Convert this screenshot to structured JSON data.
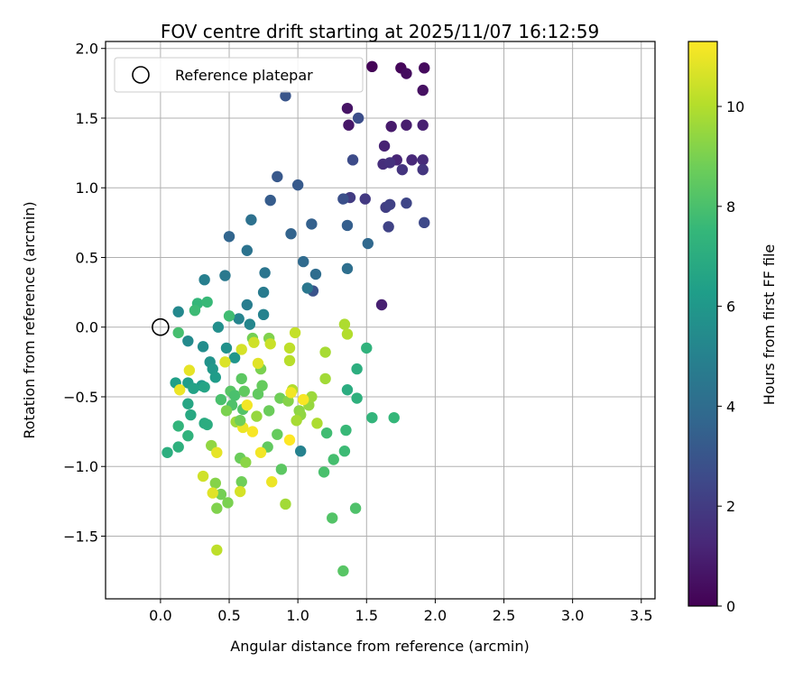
{
  "chart_data": {
    "type": "scatter",
    "title": "FOV centre drift starting at 2025/11/07 16:12:59",
    "xlabel": "Angular distance from reference (arcmin)",
    "ylabel": "Rotation from reference (arcmin)",
    "xlim": [
      -0.4,
      3.6
    ],
    "ylim": [
      -1.95,
      2.05
    ],
    "xticks": [
      "0.0",
      "0.5",
      "1.0",
      "1.5",
      "2.0",
      "2.5",
      "3.0",
      "3.5"
    ],
    "xtick_values": [
      0.0,
      0.5,
      1.0,
      1.5,
      2.0,
      2.5,
      3.0,
      3.5
    ],
    "yticks": [
      "−1.5",
      "−1.0",
      "−0.5",
      "0.0",
      "0.5",
      "1.0",
      "1.5",
      "2.0"
    ],
    "ytick_values": [
      -1.5,
      -1.0,
      -0.5,
      0.0,
      0.5,
      1.0,
      1.5,
      2.0
    ],
    "grid": true,
    "legend": {
      "label": "Reference platepar",
      "placement": "top-left"
    },
    "reference_point": {
      "x": 0.0,
      "y": 0.0
    },
    "colorbar": {
      "label": "Hours from first FF file",
      "colormap": "viridis",
      "range": [
        0,
        11.3
      ],
      "ticks": [
        "0",
        "2",
        "4",
        "6",
        "8",
        "10"
      ],
      "tick_values": [
        0,
        2,
        4,
        6,
        8,
        10
      ]
    },
    "colors": {
      "viridis": [
        "#440154",
        "#482878",
        "#3e4989",
        "#31688e",
        "#26828e",
        "#1f9e89",
        "#35b779",
        "#6ece58",
        "#b5de2b",
        "#fde725"
      ],
      "grid": "#b0b0b0",
      "reference_marker": "#000000"
    },
    "points": [
      {
        "x": 1.54,
        "y": 1.87,
        "h": 0.1
      },
      {
        "x": 1.75,
        "y": 1.86,
        "h": 0.2
      },
      {
        "x": 1.92,
        "y": 1.86,
        "h": 0.3
      },
      {
        "x": 1.79,
        "y": 1.82,
        "h": 0.4
      },
      {
        "x": 1.91,
        "y": 1.7,
        "h": 0.5
      },
      {
        "x": 1.36,
        "y": 1.57,
        "h": 0.6
      },
      {
        "x": 1.37,
        "y": 1.45,
        "h": 0.7
      },
      {
        "x": 1.68,
        "y": 1.44,
        "h": 0.8
      },
      {
        "x": 1.79,
        "y": 1.45,
        "h": 0.9
      },
      {
        "x": 1.91,
        "y": 1.45,
        "h": 1.0
      },
      {
        "x": 1.63,
        "y": 1.3,
        "h": 1.1
      },
      {
        "x": 1.72,
        "y": 1.2,
        "h": 1.2
      },
      {
        "x": 1.83,
        "y": 1.2,
        "h": 1.3
      },
      {
        "x": 1.91,
        "y": 1.2,
        "h": 1.4
      },
      {
        "x": 1.62,
        "y": 1.17,
        "h": 1.5
      },
      {
        "x": 1.67,
        "y": 1.18,
        "h": 1.6
      },
      {
        "x": 1.76,
        "y": 1.13,
        "h": 1.7
      },
      {
        "x": 1.91,
        "y": 1.13,
        "h": 1.8
      },
      {
        "x": 1.49,
        "y": 0.92,
        "h": 1.9
      },
      {
        "x": 1.38,
        "y": 0.93,
        "h": 2.0
      },
      {
        "x": 1.64,
        "y": 0.86,
        "h": 2.1
      },
      {
        "x": 1.67,
        "y": 0.88,
        "h": 2.2
      },
      {
        "x": 1.66,
        "y": 0.72,
        "h": 2.3
      },
      {
        "x": 1.79,
        "y": 0.89,
        "h": 2.4
      },
      {
        "x": 1.92,
        "y": 0.75,
        "h": 2.5
      },
      {
        "x": 1.4,
        "y": 1.2,
        "h": 2.6
      },
      {
        "x": 1.44,
        "y": 1.5,
        "h": 2.7
      },
      {
        "x": 1.33,
        "y": 0.92,
        "h": 2.8
      },
      {
        "x": 1.11,
        "y": 0.26,
        "h": 2.9
      },
      {
        "x": 0.91,
        "y": 1.66,
        "h": 3.0
      },
      {
        "x": 0.85,
        "y": 1.08,
        "h": 3.1
      },
      {
        "x": 1.0,
        "y": 1.02,
        "h": 3.2
      },
      {
        "x": 0.8,
        "y": 0.91,
        "h": 3.3
      },
      {
        "x": 1.36,
        "y": 0.73,
        "h": 3.4
      },
      {
        "x": 1.1,
        "y": 0.74,
        "h": 3.5
      },
      {
        "x": 0.95,
        "y": 0.67,
        "h": 3.6
      },
      {
        "x": 0.5,
        "y": 0.65,
        "h": 3.7
      },
      {
        "x": 1.51,
        "y": 0.6,
        "h": 3.8
      },
      {
        "x": 1.04,
        "y": 0.47,
        "h": 3.9
      },
      {
        "x": 1.13,
        "y": 0.38,
        "h": 4.0
      },
      {
        "x": 1.36,
        "y": 0.42,
        "h": 4.1
      },
      {
        "x": 0.66,
        "y": 0.77,
        "h": 4.2
      },
      {
        "x": 0.63,
        "y": 0.55,
        "h": 4.3
      },
      {
        "x": 0.76,
        "y": 0.39,
        "h": 4.4
      },
      {
        "x": 1.07,
        "y": 0.28,
        "h": 4.5
      },
      {
        "x": 0.47,
        "y": 0.37,
        "h": 4.6
      },
      {
        "x": 0.75,
        "y": 0.25,
        "h": 4.7
      },
      {
        "x": 0.63,
        "y": 0.16,
        "h": 4.8
      },
      {
        "x": 0.32,
        "y": 0.34,
        "h": 4.9
      },
      {
        "x": 0.75,
        "y": 0.09,
        "h": 5.0
      },
      {
        "x": 0.57,
        "y": 0.06,
        "h": 5.1
      },
      {
        "x": 0.65,
        "y": 0.02,
        "h": 5.2
      },
      {
        "x": 0.13,
        "y": 0.11,
        "h": 5.3
      },
      {
        "x": 0.2,
        "y": -0.1,
        "h": 5.4
      },
      {
        "x": 0.31,
        "y": -0.14,
        "h": 5.5
      },
      {
        "x": 0.42,
        "y": 0.0,
        "h": 5.6
      },
      {
        "x": 0.48,
        "y": -0.15,
        "h": 5.7
      },
      {
        "x": 0.36,
        "y": -0.25,
        "h": 5.8
      },
      {
        "x": 0.54,
        "y": -0.22,
        "h": 5.9
      },
      {
        "x": 0.38,
        "y": -0.3,
        "h": 6.0
      },
      {
        "x": 0.3,
        "y": -0.42,
        "h": 6.1
      },
      {
        "x": 0.4,
        "y": -0.36,
        "h": 6.2
      },
      {
        "x": 0.2,
        "y": -0.4,
        "h": 6.3
      },
      {
        "x": 0.11,
        "y": -0.4,
        "h": 6.4
      },
      {
        "x": 0.24,
        "y": -0.44,
        "h": 6.5
      },
      {
        "x": 0.32,
        "y": -0.43,
        "h": 6.6
      },
      {
        "x": 0.2,
        "y": -0.55,
        "h": 6.7
      },
      {
        "x": 0.22,
        "y": -0.63,
        "h": 6.8
      },
      {
        "x": 0.32,
        "y": -0.69,
        "h": 6.9
      },
      {
        "x": 0.34,
        "y": -0.7,
        "h": 7.0
      },
      {
        "x": 0.05,
        "y": -0.9,
        "h": 7.1
      },
      {
        "x": 0.13,
        "y": -0.86,
        "h": 7.2
      },
      {
        "x": 0.2,
        "y": -0.78,
        "h": 7.3
      },
      {
        "x": 0.13,
        "y": -0.71,
        "h": 7.4
      },
      {
        "x": 0.27,
        "y": 0.17,
        "h": 7.5
      },
      {
        "x": 0.34,
        "y": 0.18,
        "h": 7.6
      },
      {
        "x": 0.25,
        "y": 0.12,
        "h": 7.7
      },
      {
        "x": 0.5,
        "y": 0.08,
        "h": 7.8
      },
      {
        "x": 0.13,
        "y": -0.04,
        "h": 7.9
      },
      {
        "x": 0.44,
        "y": -0.52,
        "h": 8.0
      },
      {
        "x": 0.52,
        "y": -0.56,
        "h": 8.1
      },
      {
        "x": 0.6,
        "y": -0.59,
        "h": 8.2
      },
      {
        "x": 0.51,
        "y": -0.46,
        "h": 8.3
      },
      {
        "x": 0.59,
        "y": -0.37,
        "h": 8.4
      },
      {
        "x": 0.71,
        "y": -0.48,
        "h": 8.5
      },
      {
        "x": 0.74,
        "y": -0.42,
        "h": 8.6
      },
      {
        "x": 0.79,
        "y": -0.6,
        "h": 8.7
      },
      {
        "x": 0.87,
        "y": -0.51,
        "h": 8.8
      },
      {
        "x": 0.67,
        "y": -0.08,
        "h": 8.9
      },
      {
        "x": 0.73,
        "y": -0.3,
        "h": 9.0
      },
      {
        "x": 0.79,
        "y": -0.08,
        "h": 9.1
      },
      {
        "x": 0.93,
        "y": -0.53,
        "h": 9.2
      },
      {
        "x": 1.01,
        "y": -0.6,
        "h": 9.3
      },
      {
        "x": 1.02,
        "y": -0.63,
        "h": 9.4
      },
      {
        "x": 1.08,
        "y": -0.56,
        "h": 9.5
      },
      {
        "x": 1.1,
        "y": -0.5,
        "h": 9.6
      },
      {
        "x": 1.2,
        "y": -0.37,
        "h": 9.7
      },
      {
        "x": 1.2,
        "y": -0.18,
        "h": 9.8
      },
      {
        "x": 1.34,
        "y": 0.02,
        "h": 9.9
      },
      {
        "x": 1.36,
        "y": -0.05,
        "h": 10.0
      },
      {
        "x": 1.61,
        "y": 0.16,
        "h": 1.0
      },
      {
        "x": 1.36,
        "y": -0.45,
        "h": 7.0
      },
      {
        "x": 1.43,
        "y": -0.3,
        "h": 7.1
      },
      {
        "x": 1.43,
        "y": -0.51,
        "h": 7.2
      },
      {
        "x": 1.5,
        "y": -0.15,
        "h": 7.3
      },
      {
        "x": 1.54,
        "y": -0.65,
        "h": 7.4
      },
      {
        "x": 1.7,
        "y": -0.65,
        "h": 7.5
      },
      {
        "x": 1.35,
        "y": -0.74,
        "h": 7.6
      },
      {
        "x": 1.34,
        "y": -0.89,
        "h": 7.7
      },
      {
        "x": 1.21,
        "y": -0.76,
        "h": 7.8
      },
      {
        "x": 1.26,
        "y": -0.95,
        "h": 7.9
      },
      {
        "x": 1.19,
        "y": -1.04,
        "h": 8.0
      },
      {
        "x": 1.42,
        "y": -1.3,
        "h": 8.1
      },
      {
        "x": 1.25,
        "y": -1.37,
        "h": 8.2
      },
      {
        "x": 1.33,
        "y": -1.75,
        "h": 8.3
      },
      {
        "x": 1.02,
        "y": -0.89,
        "h": 5.0
      },
      {
        "x": 0.88,
        "y": -1.02,
        "h": 8.4
      },
      {
        "x": 0.78,
        "y": -0.86,
        "h": 8.5
      },
      {
        "x": 0.85,
        "y": -0.77,
        "h": 8.6
      },
      {
        "x": 0.58,
        "y": -0.94,
        "h": 8.7
      },
      {
        "x": 0.59,
        "y": -1.11,
        "h": 8.8
      },
      {
        "x": 0.44,
        "y": -1.2,
        "h": 8.9
      },
      {
        "x": 0.49,
        "y": -1.26,
        "h": 9.0
      },
      {
        "x": 0.41,
        "y": -1.3,
        "h": 9.1
      },
      {
        "x": 0.4,
        "y": -1.12,
        "h": 9.2
      },
      {
        "x": 0.62,
        "y": -0.97,
        "h": 9.3
      },
      {
        "x": 0.37,
        "y": -0.85,
        "h": 9.4
      },
      {
        "x": 0.7,
        "y": -0.64,
        "h": 9.5
      },
      {
        "x": 0.55,
        "y": -0.68,
        "h": 9.6
      },
      {
        "x": 0.91,
        "y": -1.27,
        "h": 9.7
      },
      {
        "x": 0.99,
        "y": -0.67,
        "h": 9.8
      },
      {
        "x": 1.14,
        "y": -0.69,
        "h": 9.9
      },
      {
        "x": 0.96,
        "y": -0.45,
        "h": 10.0
      },
      {
        "x": 0.94,
        "y": -0.24,
        "h": 10.1
      },
      {
        "x": 0.94,
        "y": -0.15,
        "h": 10.2
      },
      {
        "x": 0.98,
        "y": -0.04,
        "h": 10.3
      },
      {
        "x": 0.8,
        "y": -0.12,
        "h": 10.4
      },
      {
        "x": 0.68,
        "y": -0.11,
        "h": 10.5
      },
      {
        "x": 0.59,
        "y": -0.16,
        "h": 10.6
      },
      {
        "x": 0.47,
        "y": -0.25,
        "h": 10.7
      },
      {
        "x": 0.71,
        "y": -0.26,
        "h": 10.8
      },
      {
        "x": 0.21,
        "y": -0.31,
        "h": 10.9
      },
      {
        "x": 0.14,
        "y": -0.45,
        "h": 11.0
      },
      {
        "x": 0.95,
        "y": -0.47,
        "h": 11.1
      },
      {
        "x": 1.04,
        "y": -0.52,
        "h": 11.2
      },
      {
        "x": 0.94,
        "y": -0.81,
        "h": 11.3
      },
      {
        "x": 0.81,
        "y": -1.11,
        "h": 11.0
      },
      {
        "x": 0.73,
        "y": -0.9,
        "h": 11.1
      },
      {
        "x": 0.67,
        "y": -0.75,
        "h": 11.2
      },
      {
        "x": 0.6,
        "y": -0.72,
        "h": 11.0
      },
      {
        "x": 0.63,
        "y": -0.56,
        "h": 11.1
      },
      {
        "x": 0.41,
        "y": -0.9,
        "h": 10.9
      },
      {
        "x": 0.31,
        "y": -1.07,
        "h": 10.5
      },
      {
        "x": 0.38,
        "y": -1.19,
        "h": 10.8
      },
      {
        "x": 0.58,
        "y": -1.18,
        "h": 10.6
      },
      {
        "x": 0.41,
        "y": -1.6,
        "h": 10.2
      },
      {
        "x": 0.58,
        "y": -0.67,
        "h": 8.8
      },
      {
        "x": 0.48,
        "y": -0.6,
        "h": 9.0
      },
      {
        "x": 0.54,
        "y": -0.49,
        "h": 8.0
      },
      {
        "x": 0.61,
        "y": -0.46,
        "h": 8.5
      }
    ]
  }
}
